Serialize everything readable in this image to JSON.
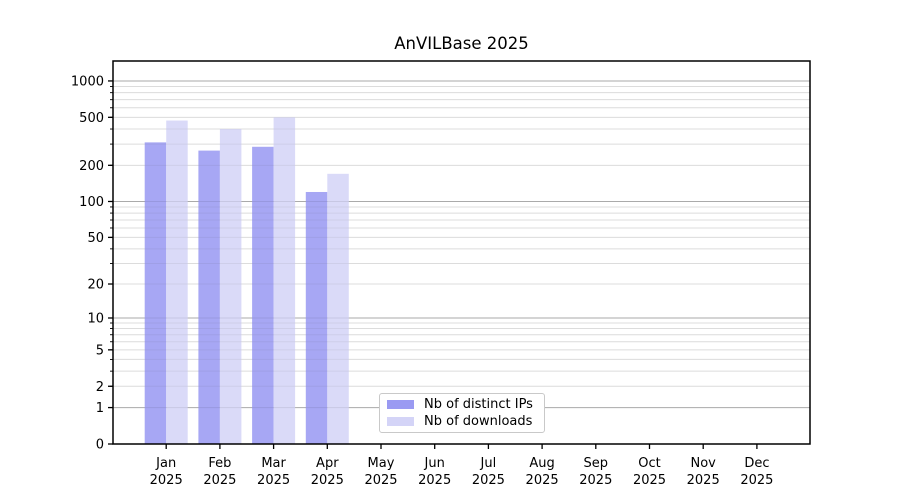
{
  "chart_data": {
    "type": "bar",
    "title": "AnVILBase 2025",
    "categories": [
      "Jan",
      "Feb",
      "Mar",
      "Apr",
      "May",
      "Jun",
      "Jul",
      "Aug",
      "Sep",
      "Oct",
      "Nov",
      "Dec"
    ],
    "category_year": "2025",
    "series": [
      {
        "name": "Nb of distinct IPs",
        "color": "#9a9af2",
        "values": [
          310,
          265,
          285,
          120,
          null,
          null,
          null,
          null,
          null,
          null,
          null,
          null
        ]
      },
      {
        "name": "Nb of downloads",
        "color": "#d4d4f7",
        "values": [
          470,
          400,
          500,
          170,
          null,
          null,
          null,
          null,
          null,
          null,
          null,
          null
        ]
      }
    ],
    "y_axis": {
      "scale": "log1p",
      "tick_labels": [
        "1000",
        "500",
        "200",
        "100",
        "50",
        "20",
        "10",
        "5",
        "2",
        "1",
        "0"
      ],
      "ylim": [
        0,
        1460
      ]
    },
    "legend": {
      "position": "lower-center"
    },
    "grid": true
  },
  "colors": {
    "background": "#ffffff",
    "spine": "#000000",
    "grid_major": "#b0b0b0",
    "grid_minor": "#e7e7e7",
    "text": "#000000"
  }
}
